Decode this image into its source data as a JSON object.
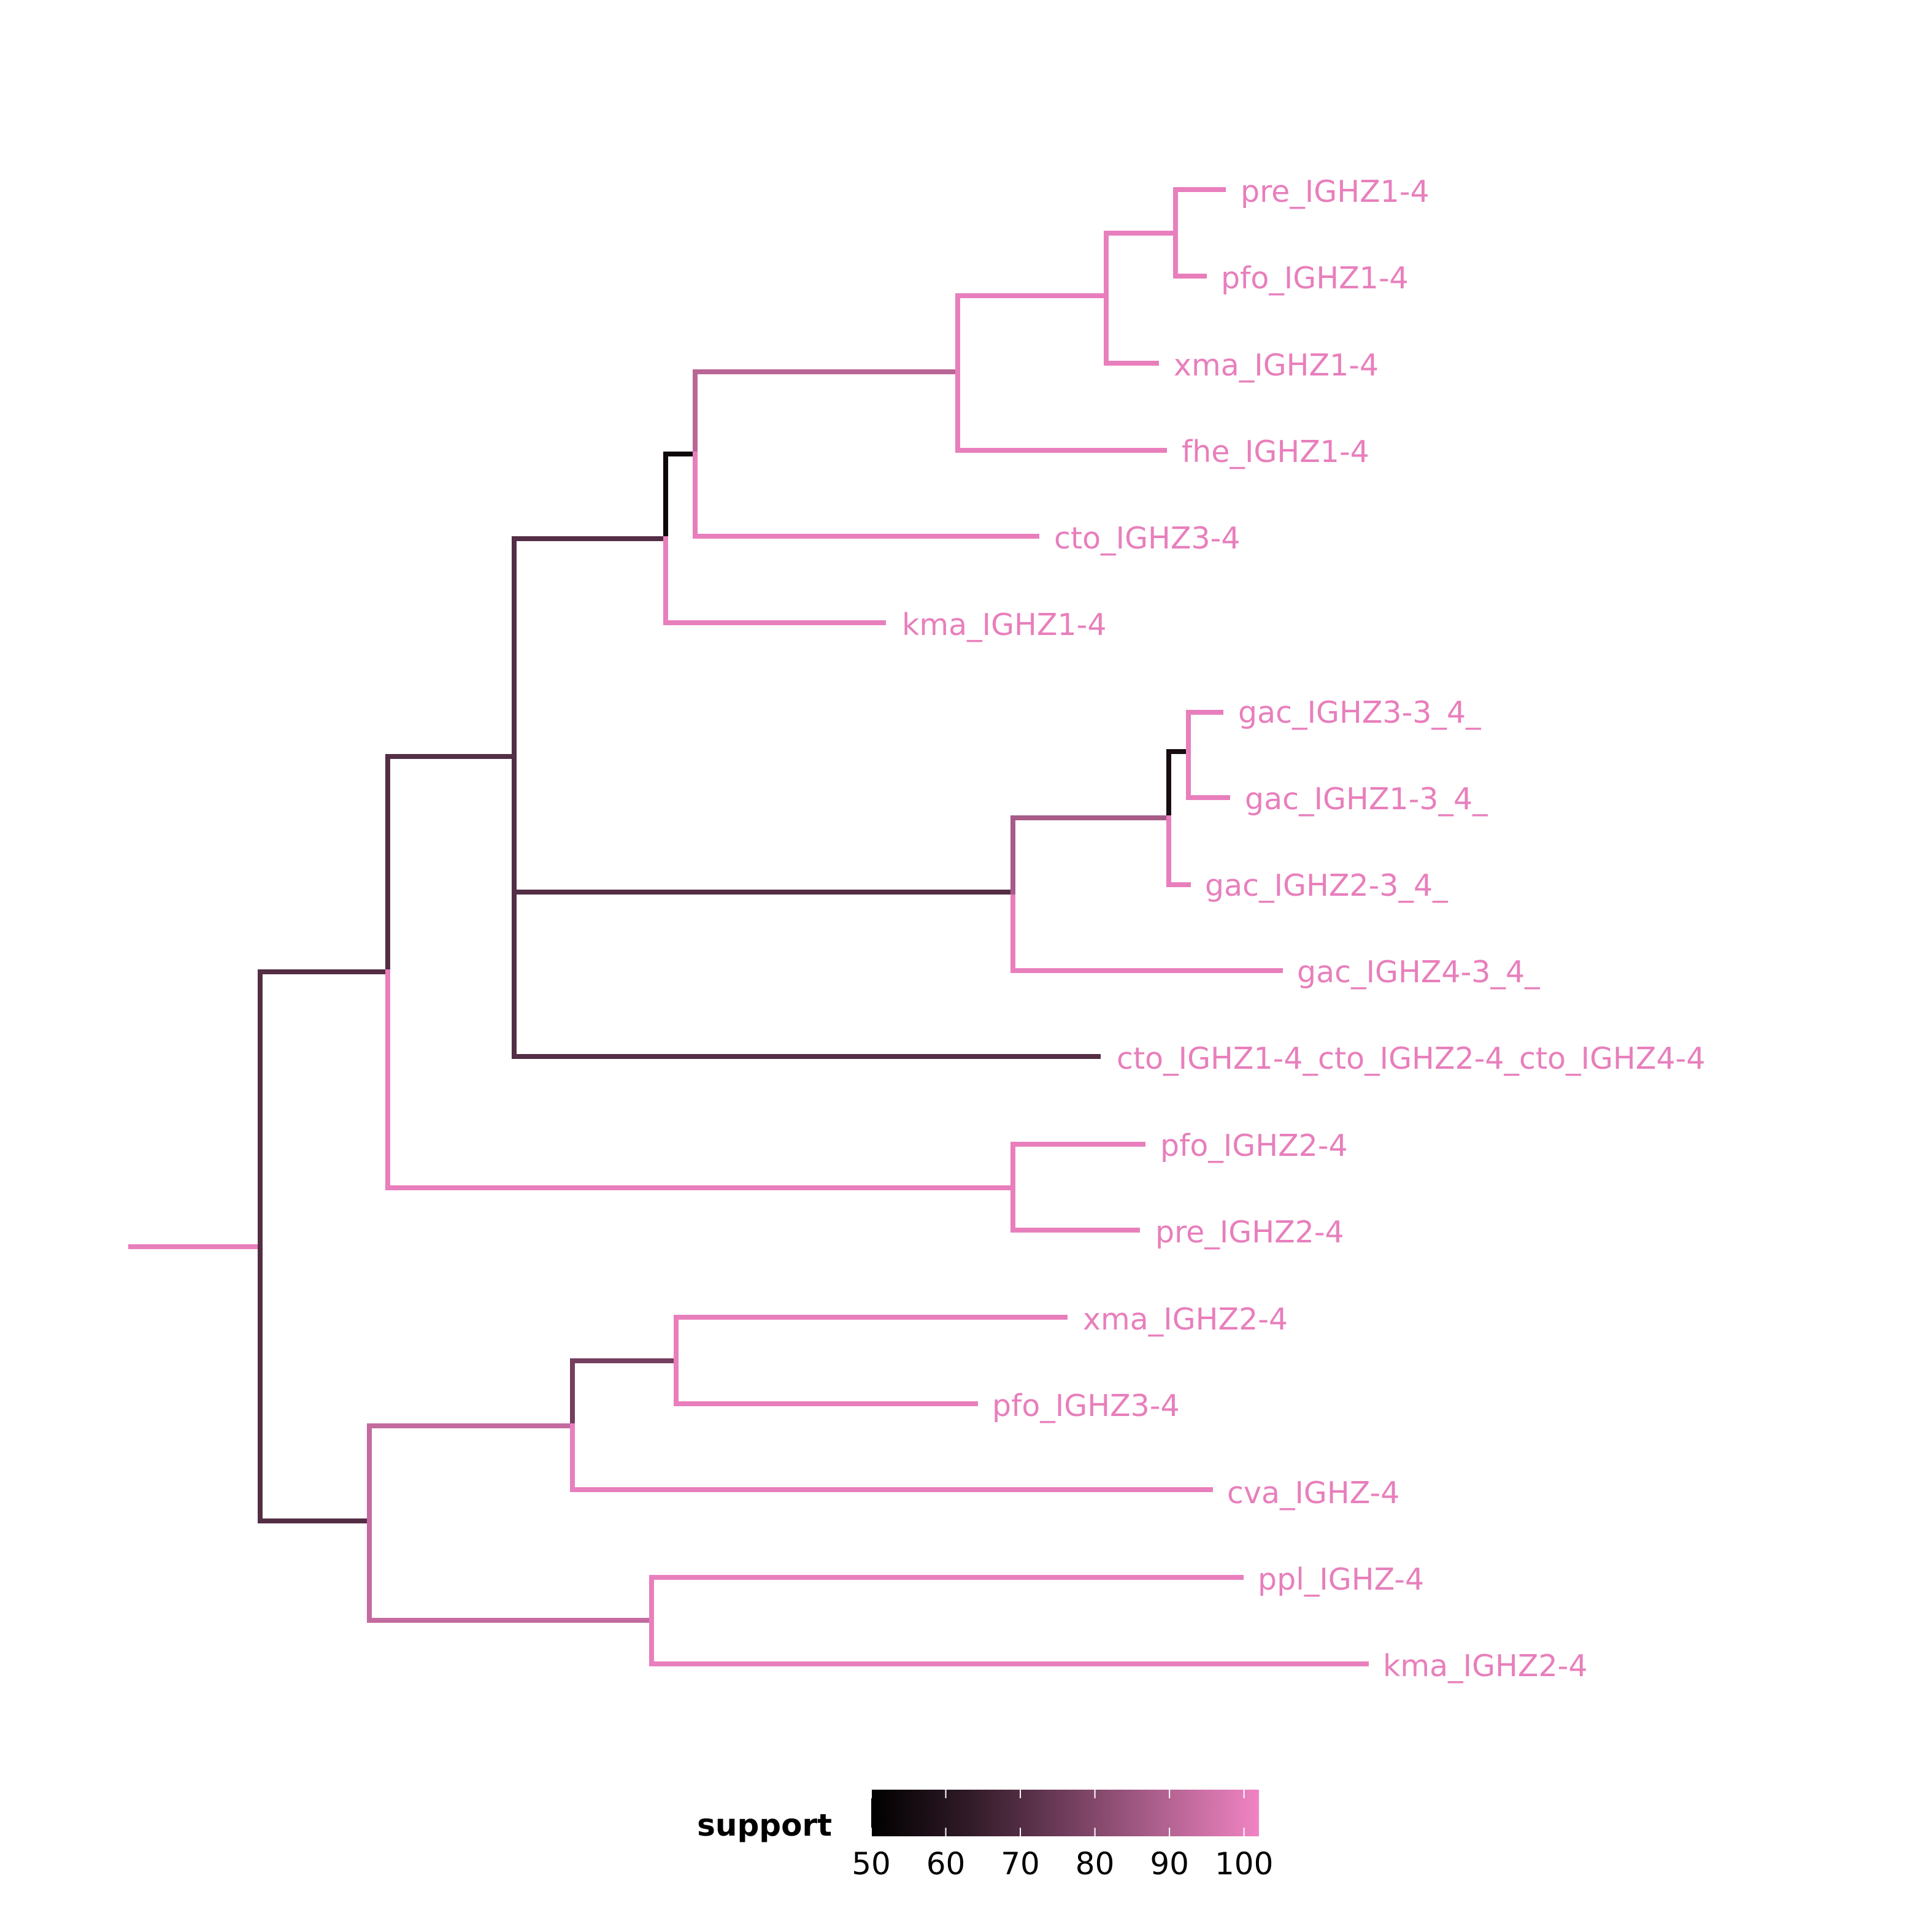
{
  "colors": {
    "low": "#000000",
    "high": "#f184c3",
    "background": "#ffffff"
  },
  "tree": {
    "edges": [
      {
        "id": "root",
        "support": 100
      },
      {
        "id": "A",
        "support": 68
      },
      {
        "id": "B",
        "support": 68
      },
      {
        "id": "C",
        "support": 53
      },
      {
        "id": "D",
        "support": 90
      },
      {
        "id": "E",
        "support": 55
      },
      {
        "id": "F",
        "support": 100
      },
      {
        "id": "G",
        "support": 100
      },
      {
        "id": "H",
        "support": 100
      },
      {
        "id": "I",
        "support": 100
      },
      {
        "id": "J",
        "support": 86
      },
      {
        "id": "K",
        "support": 75
      },
      {
        "id": "L",
        "support": 100
      },
      {
        "id": "M",
        "support": 92
      },
      {
        "id": "N",
        "support": 68
      },
      {
        "id": "O",
        "support": 100
      },
      {
        "id": "P",
        "support": 92
      },
      {
        "id": "Q",
        "support": 100
      }
    ],
    "tips": [
      {
        "label": "pre_IGHZ1-4",
        "support": 100
      },
      {
        "label": "pfo_IGHZ1-4",
        "support": 100
      },
      {
        "label": "xma_IGHZ1-4",
        "support": 100
      },
      {
        "label": "fhe_IGHZ1-4",
        "support": 100
      },
      {
        "label": "cto_IGHZ3-4",
        "support": 100
      },
      {
        "label": "kma_IGHZ1-4",
        "support": 100
      },
      {
        "label": "gac_IGHZ3-3_4_",
        "support": 100
      },
      {
        "label": "gac_IGHZ1-3_4_",
        "support": 100
      },
      {
        "label": "gac_IGHZ2-3_4_",
        "support": 100
      },
      {
        "label": "gac_IGHZ4-3_4_",
        "support": 100
      },
      {
        "label": "cto_IGHZ1-4_cto_IGHZ2-4_cto_IGHZ4-4",
        "support": 100
      },
      {
        "label": "pfo_IGHZ2-4",
        "support": 100
      },
      {
        "label": "pre_IGHZ2-4",
        "support": 100
      },
      {
        "label": "xma_IGHZ2-4",
        "support": 100
      },
      {
        "label": "pfo_IGHZ3-4",
        "support": 100
      },
      {
        "label": "cva_IGHZ-4",
        "support": 100
      },
      {
        "label": "ppl_IGHZ-4",
        "support": 100
      },
      {
        "label": "kma_IGHZ2-4",
        "support": 100
      }
    ]
  },
  "legend": {
    "title": "support",
    "min": 50,
    "max": 102,
    "ticks": [
      {
        "value": 50,
        "label": "50"
      },
      {
        "value": 60,
        "label": "60"
      },
      {
        "value": 70,
        "label": "70"
      },
      {
        "value": 80,
        "label": "80"
      },
      {
        "value": 90,
        "label": "90"
      },
      {
        "value": 100,
        "label": "100"
      }
    ]
  }
}
